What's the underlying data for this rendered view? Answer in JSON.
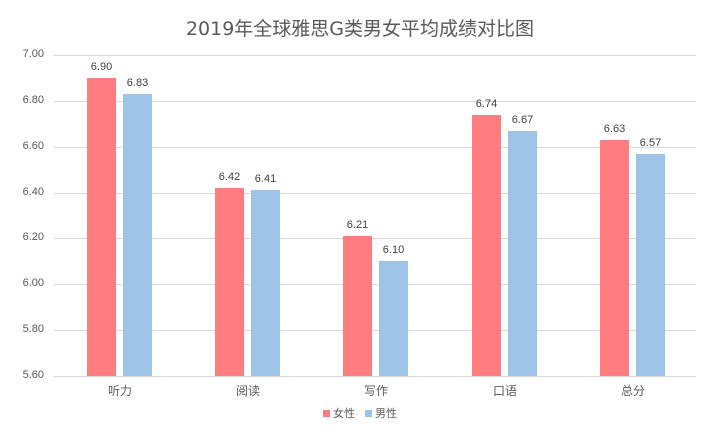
{
  "chart_data": {
    "type": "bar",
    "title": "2019年全球雅思G类男女平均成绩对比图",
    "categories": [
      "听力",
      "阅读",
      "写作",
      "口语",
      "总分"
    ],
    "series": [
      {
        "name": "女性",
        "color": "#FF7C80",
        "values": [
          6.9,
          6.42,
          6.21,
          6.74,
          6.63
        ]
      },
      {
        "name": "男性",
        "color": "#9DC3E6",
        "values": [
          6.83,
          6.41,
          6.1,
          6.67,
          6.57
        ]
      }
    ],
    "yticks": [
      "7.00",
      "6.80",
      "6.60",
      "6.40",
      "6.20",
      "6.00",
      "5.80",
      "5.60"
    ],
    "ylim": [
      5.6,
      7.0
    ],
    "xlabel": "",
    "ylabel": "",
    "grid": true,
    "legend_position": "bottom"
  }
}
